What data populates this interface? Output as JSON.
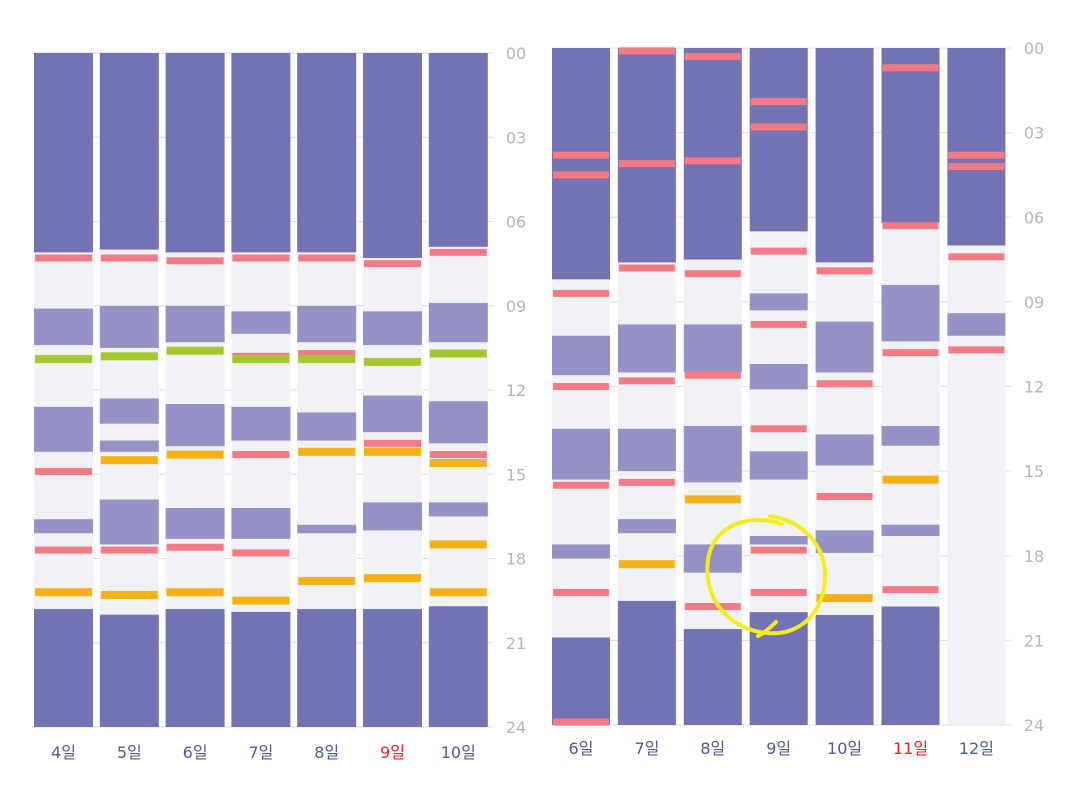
{
  "colors": {
    "sleep": "#7572b4",
    "light": "#9592c6",
    "awake": "#f0f2f6",
    "wake": "#f47b85",
    "nap": "#a5c82f",
    "meal": "#f6b117",
    "day_label": "#50588c",
    "weekend_label": "#d62b2b",
    "axis_label": "#b0b6c0",
    "gridline": "#d9dde4",
    "annotation": "#f3ee1a"
  },
  "chart_data": [
    {
      "type": "timeline",
      "ylim": [
        0,
        24
      ],
      "y_ticks": [
        "00",
        "03",
        "06",
        "09",
        "12",
        "15",
        "18",
        "21",
        "24"
      ],
      "days": [
        {
          "label": "4일",
          "weekend": false,
          "blocks": [
            [
              0,
              7.1,
              "sleep"
            ],
            [
              9.1,
              10.4,
              "light"
            ],
            [
              12.6,
              14.2,
              "light"
            ],
            [
              16.6,
              17.1,
              "light"
            ],
            [
              19.8,
              24,
              "sleep"
            ]
          ],
          "marks": [
            [
              7.3,
              "wake"
            ],
            [
              10.9,
              "nap"
            ],
            [
              14.9,
              "wake"
            ],
            [
              17.7,
              "wake"
            ],
            [
              19.2,
              "meal"
            ]
          ]
        },
        {
          "label": "5일",
          "weekend": false,
          "blocks": [
            [
              0,
              7.0,
              "sleep"
            ],
            [
              9.0,
              10.5,
              "light"
            ],
            [
              12.3,
              13.2,
              "light"
            ],
            [
              13.8,
              14.2,
              "light"
            ],
            [
              15.9,
              17.5,
              "light"
            ],
            [
              20.0,
              24,
              "sleep"
            ]
          ],
          "marks": [
            [
              7.3,
              "wake"
            ],
            [
              10.8,
              "nap"
            ],
            [
              14.5,
              "meal"
            ],
            [
              17.7,
              "wake"
            ],
            [
              19.3,
              "meal"
            ]
          ]
        },
        {
          "label": "6일",
          "weekend": false,
          "blocks": [
            [
              0,
              7.1,
              "sleep"
            ],
            [
              9.0,
              10.3,
              "light"
            ],
            [
              12.5,
              14.0,
              "light"
            ],
            [
              16.2,
              17.3,
              "light"
            ],
            [
              19.8,
              24,
              "sleep"
            ]
          ],
          "marks": [
            [
              7.4,
              "wake"
            ],
            [
              10.6,
              "nap"
            ],
            [
              14.3,
              "meal"
            ],
            [
              17.6,
              "wake"
            ],
            [
              19.2,
              "meal"
            ]
          ]
        },
        {
          "label": "7일",
          "weekend": false,
          "blocks": [
            [
              0,
              7.1,
              "sleep"
            ],
            [
              9.2,
              10.0,
              "light"
            ],
            [
              12.6,
              13.8,
              "light"
            ],
            [
              16.2,
              17.3,
              "light"
            ],
            [
              19.9,
              24,
              "sleep"
            ]
          ],
          "marks": [
            [
              7.3,
              "wake"
            ],
            [
              10.8,
              "wake"
            ],
            [
              10.9,
              "nap"
            ],
            [
              14.3,
              "wake"
            ],
            [
              17.8,
              "wake"
            ],
            [
              19.5,
              "meal"
            ]
          ]
        },
        {
          "label": "8일",
          "weekend": false,
          "blocks": [
            [
              0,
              7.1,
              "sleep"
            ],
            [
              9.0,
              10.3,
              "light"
            ],
            [
              12.8,
              13.8,
              "light"
            ],
            [
              16.8,
              17.1,
              "light"
            ],
            [
              19.8,
              24,
              "sleep"
            ]
          ],
          "marks": [
            [
              7.3,
              "wake"
            ],
            [
              10.7,
              "wake"
            ],
            [
              10.9,
              "nap"
            ],
            [
              14.2,
              "meal"
            ],
            [
              18.8,
              "meal"
            ]
          ]
        },
        {
          "label": "9일",
          "weekend": true,
          "blocks": [
            [
              0,
              7.3,
              "sleep"
            ],
            [
              9.2,
              10.4,
              "light"
            ],
            [
              12.2,
              13.5,
              "light"
            ],
            [
              16.0,
              17.0,
              "light"
            ],
            [
              19.8,
              24,
              "sleep"
            ]
          ],
          "marks": [
            [
              7.5,
              "wake"
            ],
            [
              11.0,
              "nap"
            ],
            [
              13.9,
              "wake"
            ],
            [
              14.2,
              "meal"
            ],
            [
              18.7,
              "meal"
            ]
          ]
        },
        {
          "label": "10일",
          "weekend": false,
          "blocks": [
            [
              0,
              6.9,
              "sleep"
            ],
            [
              8.9,
              10.3,
              "light"
            ],
            [
              12.4,
              13.9,
              "light"
            ],
            [
              16.0,
              16.5,
              "light"
            ],
            [
              19.7,
              24,
              "sleep"
            ]
          ],
          "marks": [
            [
              7.1,
              "wake"
            ],
            [
              10.7,
              "nap"
            ],
            [
              14.3,
              "wake"
            ],
            [
              14.6,
              "meal"
            ],
            [
              17.5,
              "meal"
            ],
            [
              19.2,
              "meal"
            ]
          ]
        }
      ]
    },
    {
      "type": "timeline",
      "ylim": [
        0,
        24
      ],
      "y_ticks": [
        "00",
        "03",
        "06",
        "09",
        "12",
        "15",
        "18",
        "21",
        "24"
      ],
      "days": [
        {
          "label": "6일",
          "weekend": false,
          "blocks": [
            [
              0,
              8.2,
              "sleep"
            ],
            [
              10.2,
              11.6,
              "light"
            ],
            [
              13.5,
              15.3,
              "light"
            ],
            [
              17.6,
              18.1,
              "light"
            ],
            [
              20.9,
              24,
              "sleep"
            ]
          ],
          "marks": [
            [
              3.8,
              "wake"
            ],
            [
              4.5,
              "wake"
            ],
            [
              8.7,
              "wake"
            ],
            [
              12.0,
              "wake"
            ],
            [
              15.5,
              "wake"
            ],
            [
              19.3,
              "wake"
            ],
            [
              23.9,
              "wake"
            ]
          ]
        },
        {
          "label": "7일",
          "weekend": false,
          "blocks": [
            [
              0,
              7.6,
              "sleep"
            ],
            [
              9.8,
              11.5,
              "light"
            ],
            [
              13.5,
              15.0,
              "light"
            ],
            [
              16.7,
              17.2,
              "light"
            ],
            [
              19.6,
              24,
              "sleep"
            ]
          ],
          "marks": [
            [
              0.1,
              "wake"
            ],
            [
              4.1,
              "wake"
            ],
            [
              7.8,
              "wake"
            ],
            [
              11.8,
              "wake"
            ],
            [
              15.4,
              "wake"
            ],
            [
              18.3,
              "meal"
            ]
          ]
        },
        {
          "label": "8일",
          "weekend": false,
          "blocks": [
            [
              0,
              7.5,
              "sleep"
            ],
            [
              9.8,
              11.5,
              "light"
            ],
            [
              13.4,
              15.4,
              "light"
            ],
            [
              17.6,
              18.6,
              "light"
            ],
            [
              20.6,
              24,
              "sleep"
            ]
          ],
          "marks": [
            [
              0.3,
              "wake"
            ],
            [
              4.0,
              "wake"
            ],
            [
              8.0,
              "wake"
            ],
            [
              11.6,
              "wake"
            ],
            [
              16.0,
              "meal"
            ],
            [
              19.8,
              "wake"
            ]
          ]
        },
        {
          "label": "9일",
          "weekend": false,
          "blocks": [
            [
              0,
              6.5,
              "sleep"
            ],
            [
              8.7,
              9.3,
              "light"
            ],
            [
              11.2,
              12.1,
              "light"
            ],
            [
              14.3,
              15.3,
              "light"
            ],
            [
              17.3,
              17.6,
              "light"
            ],
            [
              20.0,
              24,
              "sleep"
            ]
          ],
          "marks": [
            [
              1.9,
              "wake"
            ],
            [
              2.8,
              "wake"
            ],
            [
              7.2,
              "wake"
            ],
            [
              9.8,
              "wake"
            ],
            [
              13.5,
              "wake"
            ],
            [
              17.8,
              "wake"
            ],
            [
              19.3,
              "wake"
            ]
          ]
        },
        {
          "label": "10일",
          "weekend": false,
          "blocks": [
            [
              0,
              7.6,
              "sleep"
            ],
            [
              9.7,
              11.5,
              "light"
            ],
            [
              13.7,
              14.8,
              "light"
            ],
            [
              17.1,
              17.9,
              "light"
            ],
            [
              20.1,
              24,
              "sleep"
            ]
          ],
          "marks": [
            [
              7.9,
              "wake"
            ],
            [
              11.9,
              "wake"
            ],
            [
              15.9,
              "wake"
            ],
            [
              19.5,
              "meal"
            ]
          ]
        },
        {
          "label": "11일",
          "weekend": true,
          "blocks": [
            [
              0,
              6.2,
              "sleep"
            ],
            [
              8.4,
              10.4,
              "light"
            ],
            [
              13.4,
              14.1,
              "light"
            ],
            [
              16.9,
              17.3,
              "light"
            ],
            [
              19.8,
              24,
              "sleep"
            ]
          ],
          "marks": [
            [
              0.7,
              "wake"
            ],
            [
              6.3,
              "wake"
            ],
            [
              10.8,
              "wake"
            ],
            [
              15.3,
              "meal"
            ],
            [
              19.2,
              "wake"
            ]
          ]
        },
        {
          "label": "12일",
          "weekend": false,
          "blocks": [
            [
              0,
              7.0,
              "sleep"
            ],
            [
              9.4,
              10.2,
              "light"
            ]
          ],
          "marks": [
            [
              3.8,
              "wake"
            ],
            [
              4.2,
              "wake"
            ],
            [
              7.4,
              "wake"
            ],
            [
              10.7,
              "wake"
            ]
          ]
        }
      ]
    }
  ]
}
